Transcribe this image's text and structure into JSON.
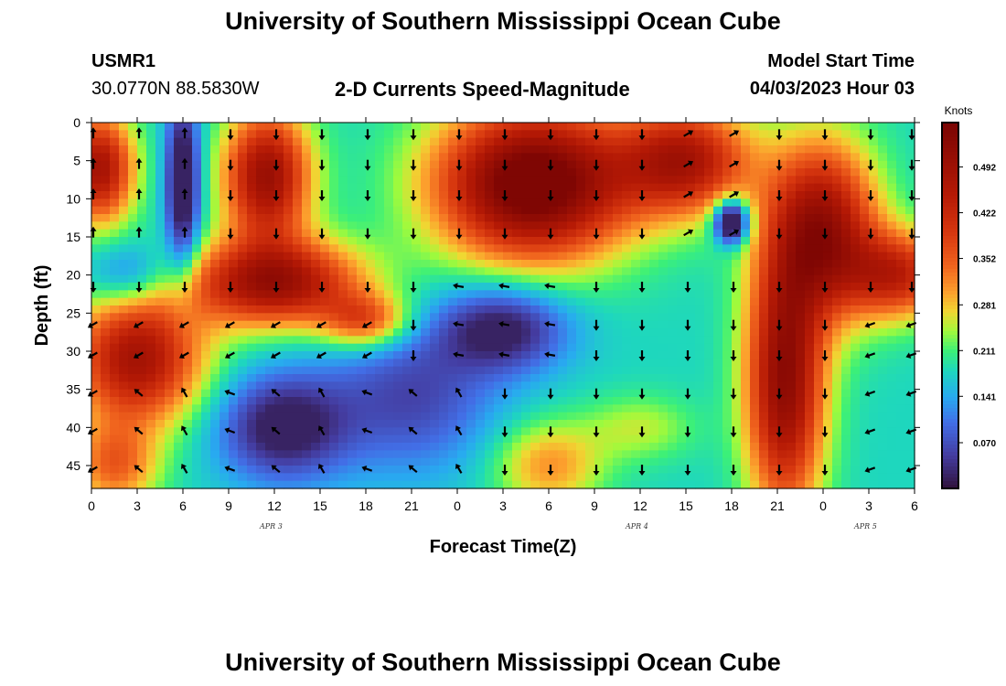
{
  "header": {
    "title_top": "University of Southern Mississippi Ocean Cube",
    "station": "USMR1",
    "coords": "30.0770N  88.5830W",
    "chart_title": "2-D Currents Speed-Magnitude",
    "model_start_label": "Model Start Time",
    "model_start_value": "04/03/2023 Hour 03",
    "title_bottom": "University of Southern Mississippi Ocean Cube"
  },
  "chart_data": {
    "type": "heatmap",
    "title": "2-D Currents Speed-Magnitude",
    "xlabel": "Forecast Time(Z)",
    "ylabel": "Depth (ft)",
    "x_ticks": [
      "0",
      "3",
      "6",
      "9",
      "12",
      "15",
      "18",
      "21",
      "0",
      "3",
      "6",
      "9",
      "12",
      "15",
      "18",
      "21",
      "0",
      "3",
      "6"
    ],
    "y_ticks": [
      "0",
      "5",
      "10",
      "15",
      "20",
      "25",
      "30",
      "35",
      "40",
      "45"
    ],
    "y_range": [
      0,
      48
    ],
    "x_hours": [
      0,
      54
    ],
    "date_labels": [
      "APR 3",
      "APR 4",
      "APR 5"
    ],
    "colorbar": {
      "label": "Knots",
      "ticks": [
        "0.492",
        "0.422",
        "0.352",
        "0.281",
        "0.211",
        "0.141",
        "0.070"
      ],
      "values": [
        0.492,
        0.422,
        0.352,
        0.281,
        0.211,
        0.141,
        0.07
      ],
      "range": [
        0.0,
        0.56
      ]
    },
    "arrow_depths": [
      1,
      5,
      9,
      14,
      21,
      26,
      30,
      35,
      40,
      45
    ],
    "arrow_hours": [
      0,
      3,
      6,
      9,
      12,
      15,
      18,
      21,
      24,
      27,
      30,
      33,
      36,
      39,
      42,
      45,
      48,
      51,
      54
    ]
  }
}
